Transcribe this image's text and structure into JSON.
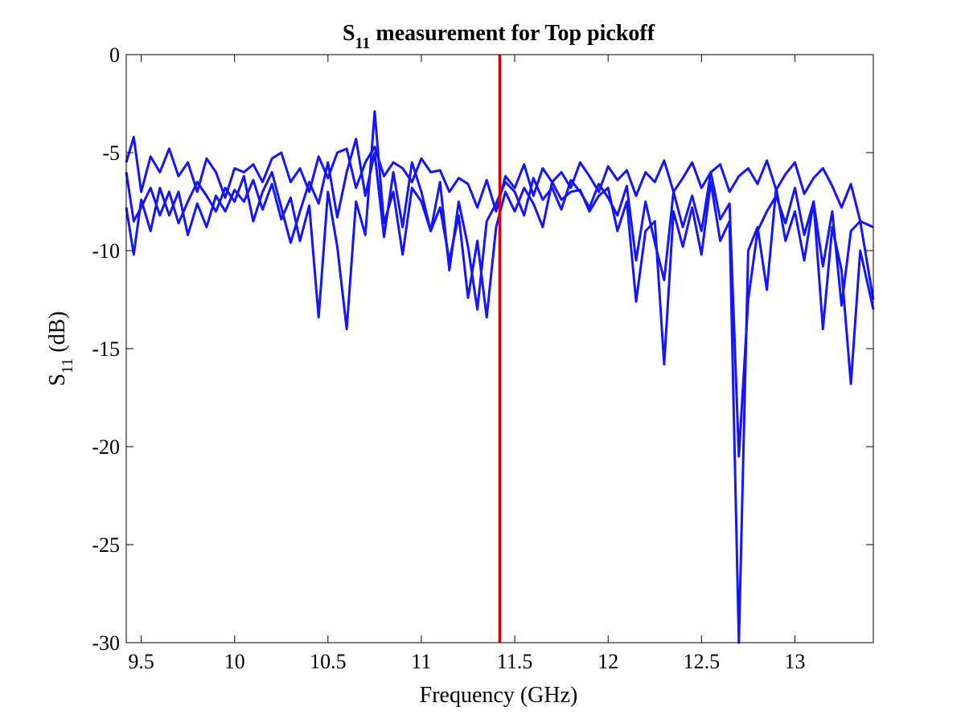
{
  "chart_data": {
    "type": "line",
    "title": {
      "symbol": "S",
      "subscript": "11",
      "rest": " measurement for Top pickoff"
    },
    "xlabel": "Frequency (GHz)",
    "ylabel": {
      "symbol": "S",
      "subscript": "11",
      "rest": " (dB)"
    },
    "xlim": [
      9.42,
      13.42
    ],
    "ylim": [
      -30,
      0
    ],
    "xticks": [
      9.5,
      10,
      10.5,
      11,
      11.5,
      12,
      12.5,
      13
    ],
    "xtick_labels": [
      "9.5",
      "10",
      "10.5",
      "11",
      "11.5",
      "12",
      "12.5",
      "13"
    ],
    "yticks": [
      0,
      -5,
      -10,
      -15,
      -20,
      -25,
      -30
    ],
    "ytick_labels": [
      "0",
      "-5",
      "-10",
      "-15",
      "-20",
      "-25",
      "-30"
    ],
    "grid": false,
    "series_color": "#1414ff",
    "marker": {
      "x": 11.42,
      "color": "#dd0000"
    },
    "series": [
      {
        "x": [
          9.42,
          9.46,
          9.5,
          9.55,
          9.6,
          9.65,
          9.7,
          9.75,
          9.8,
          9.85,
          9.9,
          9.95,
          10.0,
          10.05,
          10.1,
          10.15,
          10.2,
          10.25,
          10.3,
          10.35,
          10.4,
          10.45,
          10.5,
          10.55,
          10.6,
          10.65,
          10.7,
          10.75,
          10.8,
          10.85,
          10.9,
          10.95,
          11.0,
          11.05,
          11.1,
          11.15,
          11.2,
          11.25,
          11.3,
          11.35,
          11.4,
          11.45,
          11.5,
          11.55,
          11.6,
          11.65,
          11.7,
          11.75,
          11.8,
          11.85,
          11.9,
          11.95,
          12.0,
          12.05,
          12.1,
          12.15,
          12.2,
          12.25,
          12.3,
          12.35,
          12.4,
          12.45,
          12.5,
          12.55,
          12.6,
          12.65,
          12.7,
          12.75,
          12.8,
          12.85,
          12.9,
          12.95,
          13.0,
          13.05,
          13.1,
          13.15,
          13.2,
          13.25,
          13.3,
          13.35,
          13.42
        ],
        "y": [
          -5.5,
          -4.2,
          -7.0,
          -5.2,
          -6.0,
          -4.8,
          -6.2,
          -5.5,
          -7.0,
          -5.3,
          -6.0,
          -7.3,
          -5.8,
          -6.0,
          -5.6,
          -6.5,
          -5.3,
          -5.0,
          -6.5,
          -5.8,
          -7.0,
          -5.2,
          -6.3,
          -5.0,
          -4.8,
          -6.8,
          -5.5,
          -4.7,
          -6.2,
          -5.5,
          -5.8,
          -6.5,
          -5.3,
          -6.0,
          -5.9,
          -7.0,
          -6.3,
          -6.6,
          -7.8,
          -6.4,
          -8.0,
          -6.2,
          -6.8,
          -5.6,
          -7.2,
          -5.8,
          -6.5,
          -6.0,
          -6.8,
          -5.5,
          -6.2,
          -7.0,
          -5.7,
          -6.4,
          -5.9,
          -7.2,
          -6.0,
          -6.5,
          -5.4,
          -7.0,
          -6.3,
          -5.5,
          -6.8,
          -6.0,
          -5.6,
          -7.0,
          -6.2,
          -5.8,
          -6.6,
          -5.4,
          -6.9,
          -6.1,
          -5.5,
          -7.1,
          -6.3,
          -5.8,
          -6.7,
          -7.8,
          -6.6,
          -8.5,
          -8.8
        ]
      },
      {
        "x": [
          9.42,
          9.46,
          9.5,
          9.55,
          9.6,
          9.65,
          9.7,
          9.75,
          9.8,
          9.85,
          9.9,
          9.95,
          10.0,
          10.05,
          10.1,
          10.15,
          10.2,
          10.25,
          10.3,
          10.35,
          10.4,
          10.45,
          10.5,
          10.55,
          10.6,
          10.65,
          10.7,
          10.75,
          10.8,
          10.85,
          10.9,
          10.95,
          11.0,
          11.05,
          11.1,
          11.15,
          11.2,
          11.25,
          11.3,
          11.35,
          11.4,
          11.45,
          11.5,
          11.55,
          11.6,
          11.65,
          11.7,
          11.75,
          11.8,
          11.85,
          11.9,
          11.95,
          12.0,
          12.05,
          12.1,
          12.15,
          12.2,
          12.25,
          12.3,
          12.35,
          12.4,
          12.45,
          12.5,
          12.55,
          12.6,
          12.65,
          12.7,
          12.75,
          12.8,
          12.85,
          12.9,
          12.95,
          13.0,
          13.05,
          13.1,
          13.15,
          13.2,
          13.25,
          13.3,
          13.35,
          13.42
        ],
        "y": [
          -7.8,
          -10.2,
          -7.4,
          -9.0,
          -6.8,
          -8.2,
          -7.0,
          -9.2,
          -7.6,
          -8.8,
          -7.2,
          -8.0,
          -6.9,
          -7.5,
          -6.4,
          -7.9,
          -6.6,
          -8.4,
          -7.3,
          -9.5,
          -7.7,
          -13.4,
          -7.0,
          -9.8,
          -14.0,
          -7.5,
          -9.2,
          -2.9,
          -8.6,
          -7.0,
          -10.2,
          -6.8,
          -7.5,
          -9.0,
          -7.8,
          -10.5,
          -8.2,
          -12.4,
          -9.5,
          -13.4,
          -8.8,
          -7.0,
          -8.0,
          -6.8,
          -7.6,
          -8.8,
          -6.5,
          -7.4,
          -7.0,
          -6.9,
          -8.0,
          -7.2,
          -6.8,
          -9.0,
          -7.5,
          -12.6,
          -9.0,
          -8.5,
          -15.8,
          -8.0,
          -9.8,
          -7.8,
          -10.2,
          -6.5,
          -9.5,
          -8.5,
          -30.0,
          -10.0,
          -8.8,
          -12.0,
          -6.8,
          -9.5,
          -8.0,
          -10.5,
          -7.5,
          -14.0,
          -8.8,
          -11.0,
          -16.8,
          -10.0,
          -13.0
        ]
      },
      {
        "x": [
          9.42,
          9.46,
          9.5,
          9.55,
          9.6,
          9.65,
          9.7,
          9.75,
          9.8,
          9.85,
          9.9,
          9.95,
          10.0,
          10.05,
          10.1,
          10.15,
          10.2,
          10.25,
          10.3,
          10.35,
          10.4,
          10.45,
          10.5,
          10.55,
          10.6,
          10.65,
          10.7,
          10.75,
          10.8,
          10.85,
          10.9,
          10.95,
          11.0,
          11.05,
          11.1,
          11.15,
          11.2,
          11.25,
          11.3,
          11.35,
          11.4,
          11.45,
          11.5,
          11.55,
          11.6,
          11.65,
          11.7,
          11.75,
          11.8,
          11.85,
          11.9,
          11.95,
          12.0,
          12.05,
          12.1,
          12.15,
          12.2,
          12.25,
          12.3,
          12.35,
          12.4,
          12.45,
          12.5,
          12.55,
          12.6,
          12.65,
          12.7,
          12.75,
          12.8,
          12.85,
          12.9,
          12.95,
          13.0,
          13.05,
          13.1,
          13.15,
          13.2,
          13.25,
          13.3,
          13.35,
          13.42
        ],
        "y": [
          -6.0,
          -8.5,
          -7.8,
          -6.8,
          -8.2,
          -7.0,
          -8.6,
          -7.5,
          -6.5,
          -7.2,
          -8.0,
          -6.8,
          -7.5,
          -6.2,
          -8.5,
          -7.0,
          -6.0,
          -7.8,
          -9.6,
          -8.0,
          -6.5,
          -7.6,
          -5.5,
          -8.3,
          -6.0,
          -4.3,
          -7.2,
          -5.0,
          -9.3,
          -6.0,
          -8.8,
          -5.5,
          -7.0,
          -9.0,
          -6.5,
          -11.0,
          -7.5,
          -9.8,
          -13.0,
          -8.5,
          -7.6,
          -6.5,
          -7.0,
          -8.2,
          -6.3,
          -7.4,
          -6.8,
          -7.9,
          -6.4,
          -7.0,
          -7.8,
          -6.6,
          -7.3,
          -8.2,
          -6.7,
          -10.5,
          -7.5,
          -9.6,
          -11.5,
          -7.0,
          -8.8,
          -7.2,
          -9.0,
          -6.0,
          -8.4,
          -7.6,
          -20.5,
          -12.5,
          -9.0,
          -8.0,
          -7.2,
          -8.6,
          -6.8,
          -9.2,
          -7.5,
          -10.8,
          -8.0,
          -12.8,
          -9.0,
          -8.5,
          -12.5
        ]
      }
    ]
  }
}
